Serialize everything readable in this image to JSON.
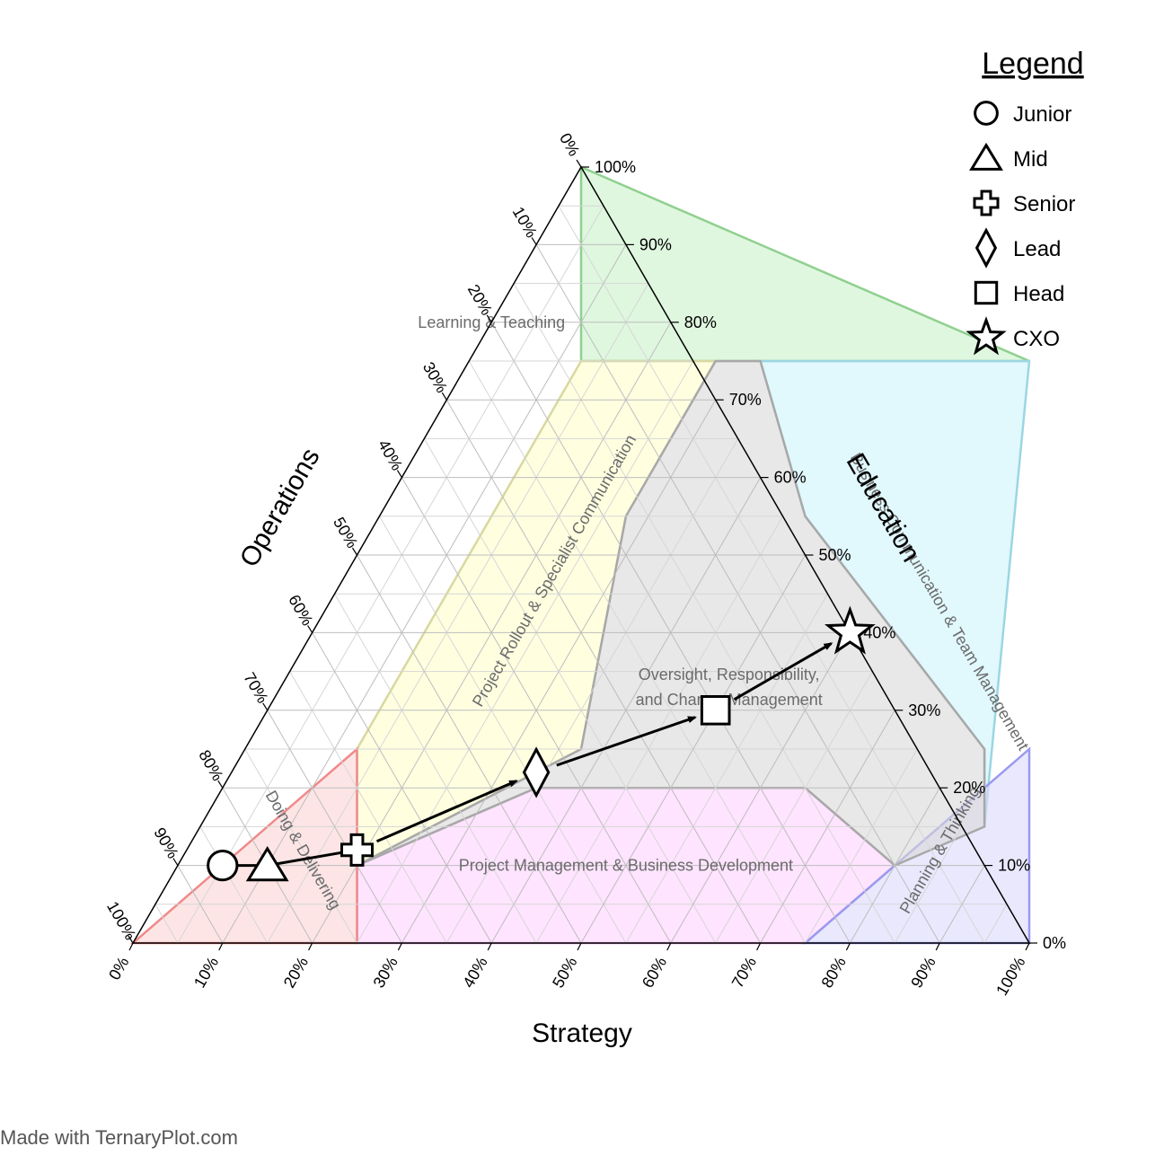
{
  "chart_data": {
    "type": "ternary",
    "axes": {
      "bottom": {
        "label": "Strategy"
      },
      "left": {
        "label": "Operations"
      },
      "right": {
        "label": "Education"
      }
    },
    "tick_values": [
      0,
      10,
      20,
      30,
      40,
      50,
      60,
      70,
      80,
      90,
      100
    ],
    "tick_labels": [
      "0%",
      "10%",
      "20%",
      "30%",
      "40%",
      "50%",
      "60%",
      "70%",
      "80%",
      "90%",
      "100%"
    ],
    "regions": [
      {
        "name": "learning",
        "label_lines": [
          "Learning & Teaching"
        ],
        "color": "#c9f2c9",
        "stroke": "#8fd08f",
        "polygon": [
          [
            0,
            100
          ],
          [
            12.5,
            75
          ],
          [
            62.5,
            75
          ]
        ],
        "label_at": [
          0,
          80
        ],
        "label_rotate": 0
      },
      {
        "name": "rollout",
        "label_lines": [
          "Project Rollout & Specialist Communication"
        ],
        "color": "#ffffcc",
        "stroke": "#d8d8a0",
        "polygon": [
          [
            12.5,
            75
          ],
          [
            27.5,
            75
          ],
          [
            27.5,
            55
          ],
          [
            37.5,
            25
          ],
          [
            20,
            10
          ],
          [
            12.5,
            25
          ]
        ],
        "label_at": [
          23,
          48
        ],
        "label_rotate": -60
      },
      {
        "name": "comms",
        "label_lines": [
          "Business Communication & Team Management"
        ],
        "color": "#cdf3fb",
        "stroke": "#9bd6e3",
        "polygon": [
          [
            62.5,
            75
          ],
          [
            32.5,
            75
          ],
          [
            47.5,
            55
          ],
          [
            82.5,
            25
          ],
          [
            87.5,
            15
          ]
        ],
        "label_at": [
          68,
          44
        ],
        "label_rotate": 60
      },
      {
        "name": "pm",
        "label_lines": [
          "Project Management & Business Development"
        ],
        "color": "#fdd2fd",
        "stroke": "#d6a3d6",
        "polygon": [
          [
            20,
            10
          ],
          [
            25,
            0
          ],
          [
            75,
            0
          ],
          [
            80,
            10
          ],
          [
            65,
            20
          ],
          [
            35,
            20
          ]
        ],
        "label_at": [
          50,
          10
        ],
        "label_rotate": 0
      },
      {
        "name": "doing",
        "label_lines": [
          "Doing & Delivering"
        ],
        "color": "#fcd3d3",
        "stroke": "#f08a8a",
        "polygon": [
          [
            0,
            0
          ],
          [
            25,
            0
          ],
          [
            12.5,
            25
          ]
        ],
        "label_at": [
          13,
          12
        ],
        "label_rotate": 60
      },
      {
        "name": "planning",
        "label_lines": [
          "Planning & Thinking"
        ],
        "color": "#dcd8fb",
        "stroke": "#9a9af0",
        "polygon": [
          [
            75,
            0
          ],
          [
            100,
            0
          ],
          [
            87.5,
            25
          ]
        ],
        "label_at": [
          84,
          12
        ],
        "label_rotate": -60
      },
      {
        "name": "oversight",
        "label_lines": [
          "Oversight, Responsibility,",
          "and Change Management"
        ],
        "color": "#d9d9d9",
        "stroke": "#a8a8a8",
        "polygon": [
          [
            27.5,
            75
          ],
          [
            32.5,
            75
          ],
          [
            47.5,
            55
          ],
          [
            82.5,
            25
          ],
          [
            87.5,
            15
          ],
          [
            80,
            10
          ],
          [
            65,
            20
          ],
          [
            35,
            20
          ],
          [
            20,
            10
          ],
          [
            37.5,
            25
          ],
          [
            27.5,
            55
          ]
        ],
        "label_at": [
          50,
          33
        ],
        "label_rotate": 0
      }
    ],
    "series": [
      {
        "name": "Junior",
        "marker": "circle",
        "strategy": 5,
        "education": 10
      },
      {
        "name": "Mid",
        "marker": "triangle",
        "strategy": 10,
        "education": 10
      },
      {
        "name": "Senior",
        "marker": "cross",
        "strategy": 19,
        "education": 12
      },
      {
        "name": "Lead",
        "marker": "diamond",
        "strategy": 34,
        "education": 22
      },
      {
        "name": "Head",
        "marker": "square",
        "strategy": 50,
        "education": 30
      },
      {
        "name": "CXO",
        "marker": "star",
        "strategy": 60,
        "education": 40
      }
    ],
    "arrows": [
      [
        2,
        3
      ],
      [
        3,
        4
      ],
      [
        4,
        5
      ]
    ],
    "connectors": [
      [
        0,
        1
      ],
      [
        1,
        2
      ]
    ],
    "legend": {
      "title": "Legend",
      "placement": "top-right"
    },
    "grid": true
  },
  "footer": "Made with TernaryPlot.com"
}
